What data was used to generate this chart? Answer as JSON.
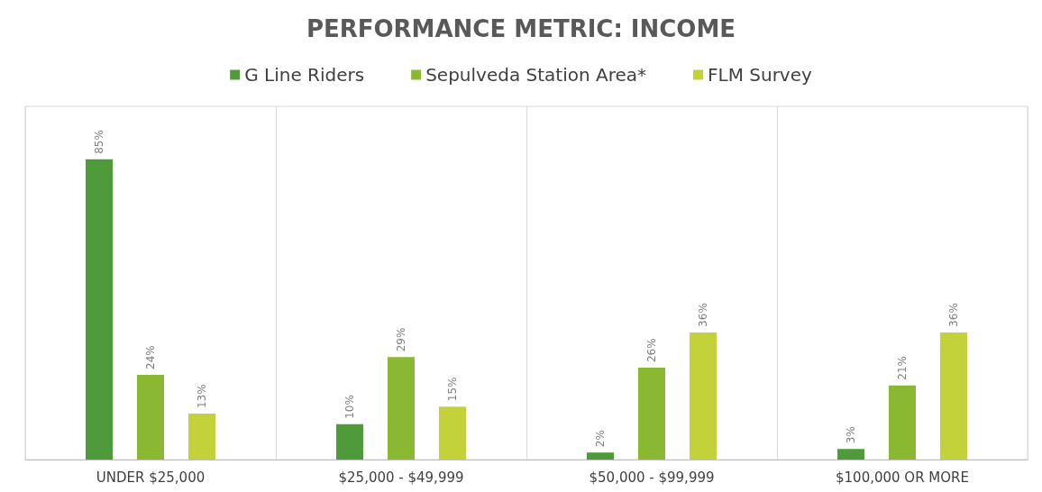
{
  "chart_data": {
    "type": "bar",
    "title": "PERFORMANCE METRIC: INCOME",
    "categories": [
      "UNDER $25,000",
      "$25,000 - $49,999",
      "$50,000 - $99,999",
      "$100,000 OR MORE"
    ],
    "series": [
      {
        "name": "G Line Riders",
        "color": "#4f9a3a",
        "values": [
          85,
          10,
          2,
          3
        ],
        "value_labels": [
          "85%",
          "10%",
          "2%",
          "3%"
        ]
      },
      {
        "name": "Sepulveda Station Area*",
        "color": "#8ab833",
        "values": [
          24,
          29,
          26,
          21
        ],
        "value_labels": [
          "24%",
          "29%",
          "26%",
          "21%"
        ]
      },
      {
        "name": "FLM Survey",
        "color": "#c3d13a",
        "values": [
          13,
          15,
          36,
          36
        ],
        "value_labels": [
          "13%",
          "15%",
          "36%",
          "36%"
        ]
      }
    ],
    "grid": "x",
    "legend": "top"
  }
}
